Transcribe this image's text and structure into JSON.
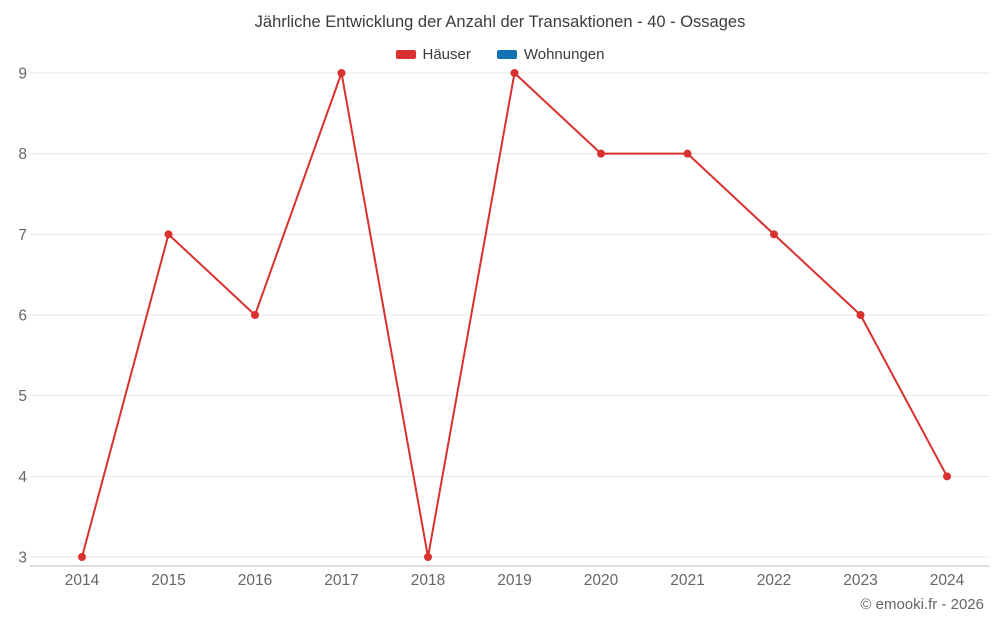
{
  "chart_data": {
    "type": "line",
    "title": "Jährliche Entwicklung der Anzahl der Transaktionen - 40 - Ossages",
    "categories": [
      "2014",
      "2015",
      "2016",
      "2017",
      "2018",
      "2019",
      "2020",
      "2021",
      "2022",
      "2023",
      "2024"
    ],
    "series": [
      {
        "name": "Häuser",
        "color": "#d8312f",
        "values": [
          3,
          7,
          6,
          9,
          3,
          9,
          8,
          8,
          7,
          6,
          4
        ]
      },
      {
        "name": "Wohnungen",
        "color": "#1272b2",
        "values": []
      }
    ],
    "xlabel": "",
    "ylabel": "",
    "ylim": [
      3,
      9
    ],
    "ytick_step": 1,
    "grid": "horizontal",
    "legend_position": "top",
    "grid_color": "#e7e7e7",
    "axis_color": "#bbbbbb",
    "tick_color": "#666666"
  },
  "footer": {
    "copyright": "© emooki.fr - 2026"
  }
}
